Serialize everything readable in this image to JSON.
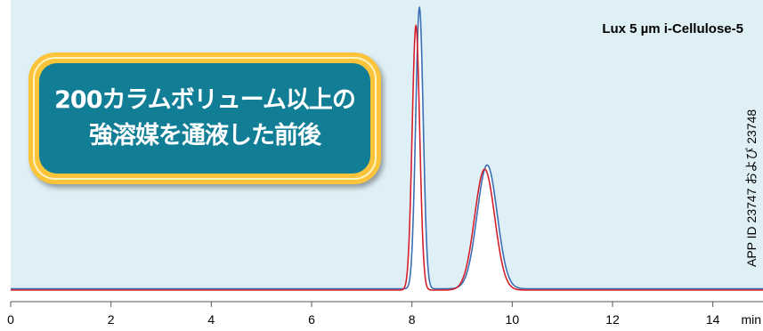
{
  "chart_data": {
    "type": "line",
    "title": "Lux 5 µm i-Cellulose-5",
    "xlabel": "",
    "xunit": "min",
    "ylabel": "",
    "xlim": [
      0,
      15
    ],
    "ylim": [
      0,
      100
    ],
    "x_ticks": [
      "0",
      "2",
      "4",
      "6",
      "8",
      "10",
      "12",
      "14"
    ],
    "grid": false,
    "legend": "none",
    "side_label": "APP ID 23747 および 23748",
    "series": [
      {
        "color": "#3a6fb5",
        "baseline": 0.45,
        "peaks": [
          {
            "rt": 8.15,
            "height": 100,
            "sigma": 0.075
          },
          {
            "rt": 9.5,
            "height": 44,
            "sigma": 0.2
          }
        ]
      },
      {
        "color": "#d4202c",
        "baseline": 0,
        "peaks": [
          {
            "rt": 8.08,
            "height": 94,
            "sigma": 0.075
          },
          {
            "rt": 9.45,
            "height": 43,
            "sigma": 0.2
          }
        ]
      }
    ]
  },
  "callout": {
    "lines": [
      "200カラムボリューム以上の",
      "強溶媒を通液した前後"
    ]
  },
  "colors": {
    "plot_background": "#def0f6",
    "callout_fill": "#117e96",
    "callout_border": "#fbc43a"
  }
}
